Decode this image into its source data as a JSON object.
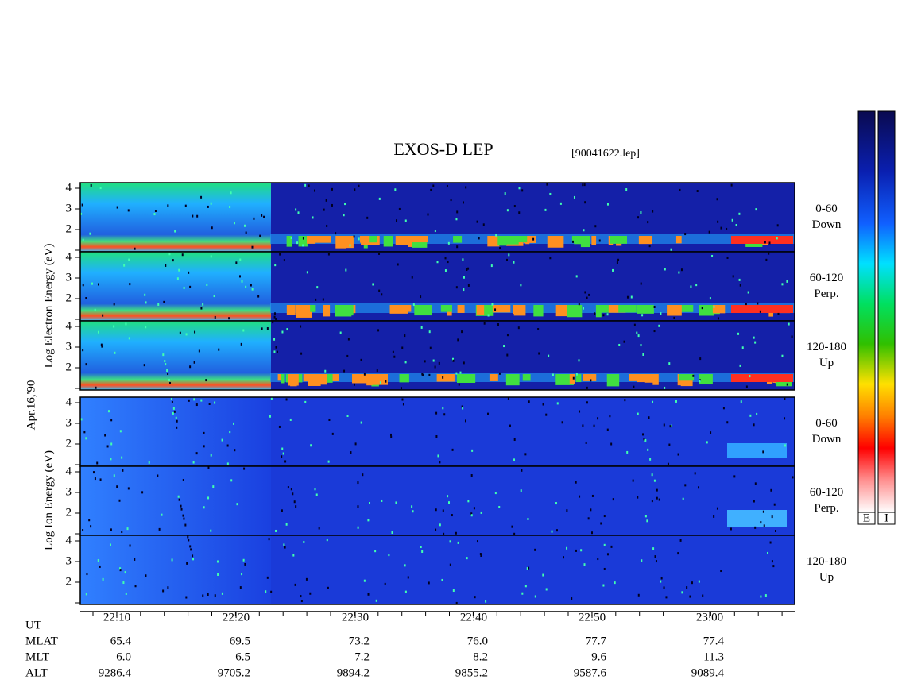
{
  "header": {
    "title": "EXOS-D LEP",
    "file": "[90041622.lep]"
  },
  "axis_labels": {
    "electron": "Log  Electron  Energy (eV)",
    "date": "Apr.16,'90",
    "ion": "Log  Ion  Energy (eV)"
  },
  "panels": [
    {
      "angle": "0-60",
      "direction": "Down",
      "yticks": [
        2,
        3,
        4
      ]
    },
    {
      "angle": "60-120",
      "direction": "Perp.",
      "yticks": [
        2,
        3,
        4
      ]
    },
    {
      "angle": "120-180",
      "direction": "Up",
      "yticks": [
        2,
        3,
        4
      ]
    },
    {
      "angle": "0-60",
      "direction": "Down",
      "yticks": [
        2,
        3,
        4
      ]
    },
    {
      "angle": "60-120",
      "direction": "Perp.",
      "yticks": [
        2,
        3,
        4
      ]
    },
    {
      "angle": "120-180",
      "direction": "Up",
      "yticks": [
        2,
        3,
        4
      ]
    }
  ],
  "orbit": {
    "rows": [
      {
        "label": "UT",
        "values": [
          "22:10",
          "22:20",
          "22:30",
          "22:40",
          "22:50",
          "23:00"
        ]
      },
      {
        "label": "MLAT",
        "values": [
          "65.4",
          "69.5",
          "73.2",
          "76.0",
          "77.7",
          "77.4"
        ]
      },
      {
        "label": "MLT",
        "values": [
          "6.0",
          "6.5",
          "7.2",
          "8.2",
          "9.6",
          "11.3"
        ]
      },
      {
        "label": "ALT",
        "values": [
          "9286.4",
          "9705.2",
          "9894.2",
          "9855.2",
          "9587.6",
          "9089.4"
        ]
      }
    ]
  },
  "colorbar": {
    "labels": [
      "E",
      "I"
    ]
  }
}
